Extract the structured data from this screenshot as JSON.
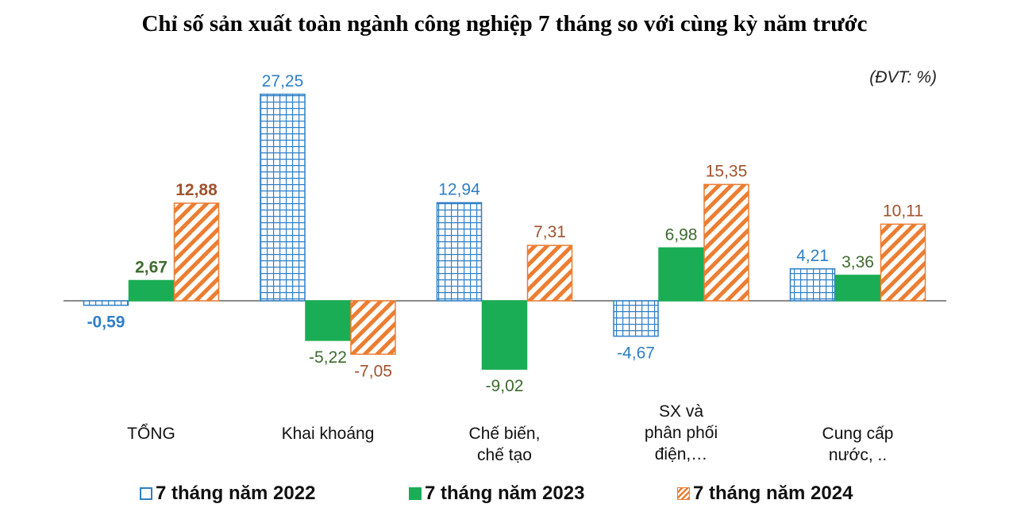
{
  "chart_data": {
    "type": "bar",
    "title": "Chỉ số sản xuất toàn ngành công nghiệp 7 tháng so với cùng kỳ năm trước",
    "unit_note": "(ĐVT: %)",
    "categories": [
      [
        "TỔNG"
      ],
      [
        "Khai  khoáng"
      ],
      [
        "Chế biến,",
        "chế tạo"
      ],
      [
        "SX và",
        "phân phối",
        "điện,…"
      ],
      [
        "Cung cấp",
        "nước, .."
      ]
    ],
    "series": [
      {
        "name": "7 tháng năm 2022",
        "values": [
          -0.59,
          27.25,
          12.94,
          -4.67,
          4.21
        ],
        "labels": [
          "-0,59",
          "27,25",
          "12,94",
          "-4,67",
          "4,21"
        ],
        "color": "#2f7fc6",
        "pattern": "grid"
      },
      {
        "name": "7 tháng năm 2023",
        "values": [
          2.67,
          -5.22,
          -9.02,
          6.98,
          3.36
        ],
        "labels": [
          "2,67",
          "-5,22",
          "-9,02",
          "6,98",
          "3,36"
        ],
        "color": "#1aad55",
        "label_color": "#3d6b2f",
        "pattern": "solid"
      },
      {
        "name": "7 tháng năm 2024",
        "values": [
          12.88,
          -7.05,
          7.31,
          15.35,
          10.11
        ],
        "labels": [
          "12,88",
          "-7,05",
          "7,31",
          "15,35",
          "10,11"
        ],
        "color": "#ec7d31",
        "label_color": "#a0522d",
        "pattern": "diagonal"
      }
    ],
    "bold_labels_category": 0,
    "legend_position": "bottom",
    "grid": false
  }
}
